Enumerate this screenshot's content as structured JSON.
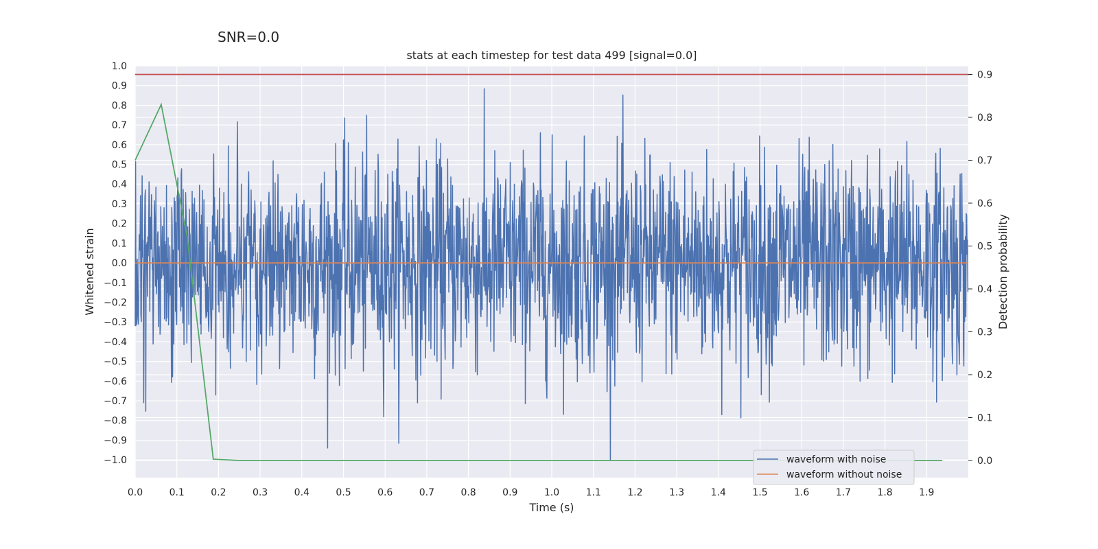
{
  "suptitle": "SNR=0.0",
  "chart_data": {
    "type": "line",
    "title": "stats at each timestep for test data 499 [signal=0.0]",
    "xlabel": "Time (s)",
    "ylabel": "Whitened strain",
    "y2label": "Detection probability",
    "xlim": [
      0.0,
      2.0
    ],
    "ylim": [
      -1.09,
      1.0
    ],
    "y2lim": [
      -0.04,
      0.92
    ],
    "x_ticks": [
      "0.0",
      "0.1",
      "0.2",
      "0.3",
      "0.4",
      "0.5",
      "0.6",
      "0.7",
      "0.8",
      "0.9",
      "1.0",
      "1.1",
      "1.2",
      "1.3",
      "1.4",
      "1.5",
      "1.6",
      "1.7",
      "1.8",
      "1.9"
    ],
    "y_ticks": [
      "1.0",
      "0.9",
      "0.8",
      "0.7",
      "0.6",
      "0.5",
      "0.4",
      "0.3",
      "0.2",
      "0.1",
      "0.0",
      "−0.1",
      "−0.2",
      "−0.3",
      "−0.4",
      "−0.5",
      "−0.6",
      "−0.7",
      "−0.8",
      "−0.9",
      "−1.0"
    ],
    "y2_ticks": [
      "0.9",
      "0.8",
      "0.7",
      "0.6",
      "0.5",
      "0.4",
      "0.3",
      "0.2",
      "0.1",
      "0.0"
    ],
    "grid": true,
    "legend_position": "lower-right",
    "series": [
      {
        "name": "waveform with noise",
        "color": "#4c72b0",
        "axis": "left",
        "x_range": [
          0.0,
          2.0
        ],
        "n_samples": 2048,
        "note_values": "dense noise, amplitude roughly within -1.0 to 0.9"
      },
      {
        "name": "waveform without noise",
        "color": "#dd8452",
        "axis": "left",
        "x": [
          0.0,
          2.0
        ],
        "y": [
          0.0,
          0.0
        ]
      },
      {
        "color": "#55a868",
        "axis": "right",
        "x": [
          0.0,
          0.0625,
          0.125,
          0.1875,
          0.25,
          0.3125,
          0.5,
          1.0,
          1.5,
          1.9375
        ],
        "y": [
          0.7,
          0.83,
          0.52,
          0.003,
          0.0,
          0.0,
          0.0,
          0.0,
          0.0,
          0.0
        ]
      },
      {
        "color": "#c44e52",
        "axis": "right",
        "x": [
          0.0,
          2.0
        ],
        "y": [
          0.9,
          0.9
        ]
      }
    ]
  }
}
